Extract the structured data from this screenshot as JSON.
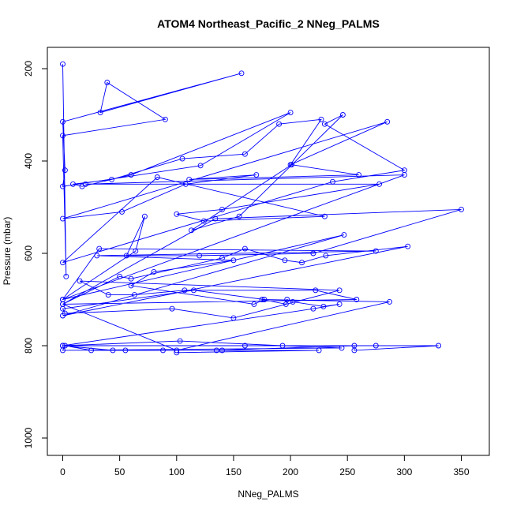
{
  "chart_data": {
    "type": "line",
    "title": "ATOM4 Northeast_Pacific_2 NNeg_PALMS",
    "xlabel": "NNeg_PALMS",
    "ylabel": "Pressure (mbar)",
    "xlim": [
      0,
      350
    ],
    "ylim": [
      1000,
      200
    ],
    "y_axis_reversed": true,
    "x_ticks": [
      0,
      50,
      100,
      150,
      200,
      250,
      300,
      350
    ],
    "y_ticks": [
      200,
      400,
      600,
      800,
      1000
    ],
    "marker": "open-circle",
    "series_color": "#0000ff",
    "grid": false,
    "series": [
      {
        "x": [
          0,
          3,
          0,
          90,
          39,
          33,
          157,
          0,
          2,
          0,
          121,
          200,
          60,
          17,
          9,
          43,
          105,
          160,
          190,
          227,
          200,
          285,
          0,
          52,
          108,
          170,
          111,
          260,
          201,
          113,
          155,
          246,
          230,
          300,
          237,
          0,
          83,
          230,
          124,
          100,
          140,
          278,
          20,
          300,
          0,
          64,
          72,
          56,
          120,
          220,
          350,
          134,
          0,
          50,
          60,
          140,
          160,
          195,
          210,
          231,
          303,
          0,
          247,
          0,
          32,
          275,
          30,
          150,
          80,
          60,
          168,
          177,
          115,
          0,
          2,
          96,
          150,
          243,
          15,
          40,
          63,
          107,
          222,
          258,
          0,
          100,
          287,
          175,
          196,
          197,
          202,
          229,
          243,
          220,
          0,
          44,
          88,
          135,
          256,
          256,
          330,
          275,
          160,
          0,
          103,
          193,
          245,
          0,
          2,
          25,
          55,
          140,
          225,
          100
        ],
        "y": [
          190,
          650,
          345,
          310,
          230,
          295,
          210,
          315,
          420,
          455,
          410,
          295,
          430,
          455,
          450,
          440,
          395,
          385,
          320,
          310,
          408,
          315,
          525,
          510,
          450,
          430,
          440,
          430,
          408,
          550,
          520,
          300,
          320,
          420,
          445,
          620,
          435,
          520,
          530,
          515,
          505,
          450,
          450,
          430,
          700,
          595,
          520,
          605,
          605,
          600,
          505,
          525,
          710,
          650,
          655,
          610,
          590,
          615,
          620,
          605,
          585,
          735,
          560,
          700,
          590,
          595,
          605,
          615,
          640,
          670,
          710,
          700,
          680,
          720,
          730,
          720,
          740,
          680,
          660,
          690,
          690,
          680,
          680,
          700,
          710,
          810,
          705,
          700,
          710,
          700,
          705,
          715,
          710,
          720,
          800,
          810,
          810,
          810,
          800,
          810,
          800,
          800,
          800,
          800,
          790,
          800,
          805,
          810,
          800,
          810,
          810,
          810,
          810,
          815
        ]
      }
    ]
  }
}
